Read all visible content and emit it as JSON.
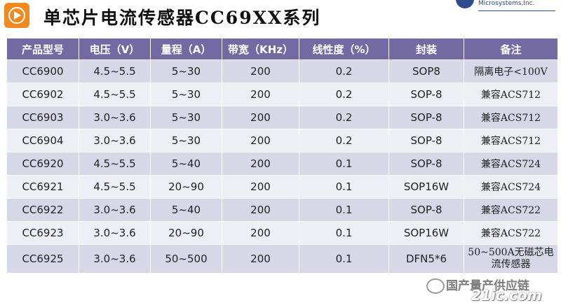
{
  "title": "单芯片电流传感器CC69XX系列",
  "logo_text": "Microsystems,Inc.",
  "table": {
    "headers": [
      "产品型号",
      "电压（V）",
      "量程（A）",
      "带宽（KHz）",
      "线性度（%）",
      "封装",
      "备注"
    ],
    "rows": [
      [
        "CC6900",
        "4.5~5.5",
        "5~30",
        "200",
        "0.2",
        "SOP8",
        "隔离电子<100V"
      ],
      [
        "CC6902",
        "4.5~5.5",
        "5~30",
        "200",
        "0.2",
        "SOP-8",
        "兼容ACS712"
      ],
      [
        "CC6903",
        "3.0~3.6",
        "5~30",
        "200",
        "0.2",
        "SOP-8",
        "兼容ACS712"
      ],
      [
        "CC6904",
        "3.0~3.6",
        "5~30",
        "200",
        "0.2",
        "SOP-8",
        "兼容ACS712"
      ],
      [
        "CC6920",
        "4.5~5.5",
        "5~40",
        "200",
        "0.1",
        "SOP-8",
        "兼容ACS724"
      ],
      [
        "CC6921",
        "4.5~5.5",
        "20~90",
        "200",
        "0.1",
        "SOP16W",
        "兼容ACS724"
      ],
      [
        "CC6922",
        "3.0~3.6",
        "5~40",
        "200",
        "0.1",
        "SOP-8",
        "兼容ACS722"
      ],
      [
        "CC6923",
        "3.0~3.6",
        "20~90",
        "200",
        "0.1",
        "SOP16W",
        "兼容ACS722"
      ],
      [
        "CC6925",
        "3.0~3.6",
        "50~500",
        "200",
        "0.1",
        "DFN5*6",
        "50~500A无磁芯电流传感器"
      ]
    ]
  },
  "watermark": {
    "text": "国产量产供应链",
    "url": "21ic.com"
  },
  "colors": {
    "header_bg": "#7369a3",
    "row_odd": "#d6d7e7",
    "row_even": "#eeeef5",
    "icon_orange": "#f08a1e"
  }
}
